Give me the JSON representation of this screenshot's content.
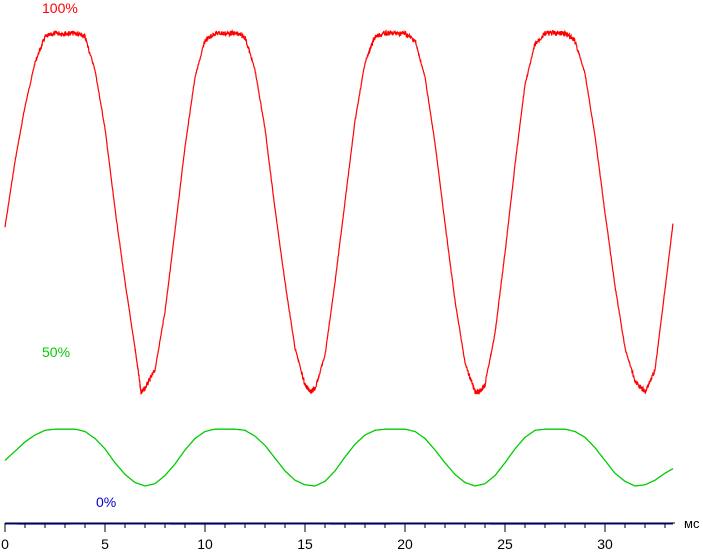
{
  "chart_data": {
    "type": "line",
    "x_unit": "мс",
    "xlim": [
      0,
      33.5
    ],
    "x_ticks": [
      0,
      5,
      10,
      15,
      20,
      25,
      30
    ],
    "grid": false,
    "series": [
      {
        "name": "100%",
        "color": "#ff0000",
        "period_ms": 8.33,
        "noise": true,
        "x": [
          0,
          0.5,
          1.0,
          1.5,
          2.0,
          2.5,
          3.0,
          3.5,
          4.0,
          4.5,
          5.0,
          5.5,
          6.0,
          6.5,
          6.8,
          7.0,
          7.5,
          8.0,
          8.5,
          9.0,
          9.5,
          10.0,
          10.5,
          11.0,
          11.5,
          12.0,
          12.5,
          13.0,
          13.5,
          14.0,
          14.5,
          15.0,
          15.3,
          15.5,
          16.0,
          16.5,
          17.0,
          17.5,
          18.0,
          18.5,
          19.0,
          19.5,
          20.0,
          20.5,
          21.0,
          21.5,
          22.0,
          22.5,
          23.0,
          23.5,
          23.7,
          24.0,
          24.5,
          25.0,
          25.5,
          26.0,
          26.5,
          27.0,
          27.5,
          28.0,
          28.5,
          29.0,
          29.5,
          30.0,
          30.5,
          31.0,
          31.5,
          32.0,
          32.5,
          33.0,
          33.4
        ],
        "y": [
          0.45,
          0.63,
          0.78,
          0.9,
          0.97,
          0.98,
          0.98,
          0.98,
          0.97,
          0.88,
          0.72,
          0.5,
          0.3,
          0.12,
          0.0,
          0.01,
          0.06,
          0.22,
          0.44,
          0.67,
          0.86,
          0.96,
          0.98,
          0.98,
          0.98,
          0.97,
          0.88,
          0.72,
          0.5,
          0.3,
          0.12,
          0.02,
          0.0,
          0.01,
          0.1,
          0.3,
          0.52,
          0.74,
          0.9,
          0.97,
          0.98,
          0.98,
          0.98,
          0.96,
          0.86,
          0.68,
          0.46,
          0.25,
          0.08,
          0.0,
          0.0,
          0.02,
          0.16,
          0.38,
          0.62,
          0.84,
          0.95,
          0.98,
          0.98,
          0.98,
          0.96,
          0.87,
          0.7,
          0.49,
          0.29,
          0.12,
          0.03,
          0.0,
          0.06,
          0.28,
          0.46
        ]
      },
      {
        "name": "50%",
        "color": "#00cc00",
        "period_ms": 8.33,
        "noise": false,
        "x": [
          0,
          0.5,
          1.0,
          1.5,
          2.0,
          2.5,
          3.0,
          3.5,
          4.0,
          4.5,
          5.0,
          5.5,
          6.0,
          6.5,
          7.0,
          7.5,
          8.0,
          8.5,
          9.0,
          9.5,
          10.0,
          10.5,
          11.0,
          11.5,
          12.0,
          12.5,
          13.0,
          13.5,
          14.0,
          14.5,
          15.0,
          15.5,
          16.0,
          16.5,
          17.0,
          17.5,
          18.0,
          18.5,
          19.0,
          19.5,
          20.0,
          20.5,
          21.0,
          21.5,
          22.0,
          22.5,
          23.0,
          23.5,
          24.0,
          24.5,
          25.0,
          25.5,
          26.0,
          26.5,
          27.0,
          27.5,
          28.0,
          28.5,
          29.0,
          29.5,
          30.0,
          30.5,
          31.0,
          31.5,
          32.0,
          32.5,
          33.0,
          33.4
        ],
        "y": [
          0.22,
          0.3,
          0.38,
          0.44,
          0.48,
          0.49,
          0.49,
          0.49,
          0.47,
          0.41,
          0.32,
          0.2,
          0.1,
          0.03,
          0.0,
          0.02,
          0.09,
          0.19,
          0.31,
          0.41,
          0.47,
          0.49,
          0.49,
          0.49,
          0.48,
          0.43,
          0.35,
          0.24,
          0.13,
          0.05,
          0.01,
          0.0,
          0.04,
          0.13,
          0.25,
          0.36,
          0.44,
          0.48,
          0.49,
          0.49,
          0.49,
          0.47,
          0.41,
          0.31,
          0.2,
          0.1,
          0.03,
          0.0,
          0.02,
          0.09,
          0.2,
          0.32,
          0.42,
          0.48,
          0.49,
          0.49,
          0.49,
          0.47,
          0.42,
          0.33,
          0.22,
          0.11,
          0.04,
          0.0,
          0.01,
          0.05,
          0.11,
          0.15
        ]
      },
      {
        "name": "0%",
        "color": "#0000cc",
        "period_ms": 8.33,
        "noise": false,
        "x": [
          0,
          0.5,
          1.0,
          2.0,
          3.0,
          4.0,
          5.0,
          6.0,
          7.0,
          8.0,
          9.0,
          10.0,
          11.0,
          12.0,
          13.0,
          14.0,
          15.0,
          16.0,
          17.0,
          18.0,
          19.0,
          20.0,
          21.0,
          22.0,
          23.0,
          24.0,
          25.0,
          26.0,
          27.0,
          28.0,
          29.0,
          30.0,
          31.0,
          32.0,
          33.0,
          33.4
        ],
        "y": [
          0.018,
          0.01,
          0.0,
          0.0,
          0.005,
          0.015,
          0.022,
          0.025,
          0.02,
          0.01,
          0.0,
          0.0,
          0.005,
          0.015,
          0.023,
          0.025,
          0.02,
          0.01,
          0.0,
          0.0,
          0.005,
          0.015,
          0.023,
          0.025,
          0.02,
          0.01,
          0.0,
          0.0,
          0.005,
          0.015,
          0.023,
          0.025,
          0.02,
          0.01,
          0.012,
          0.013
        ]
      }
    ]
  }
}
